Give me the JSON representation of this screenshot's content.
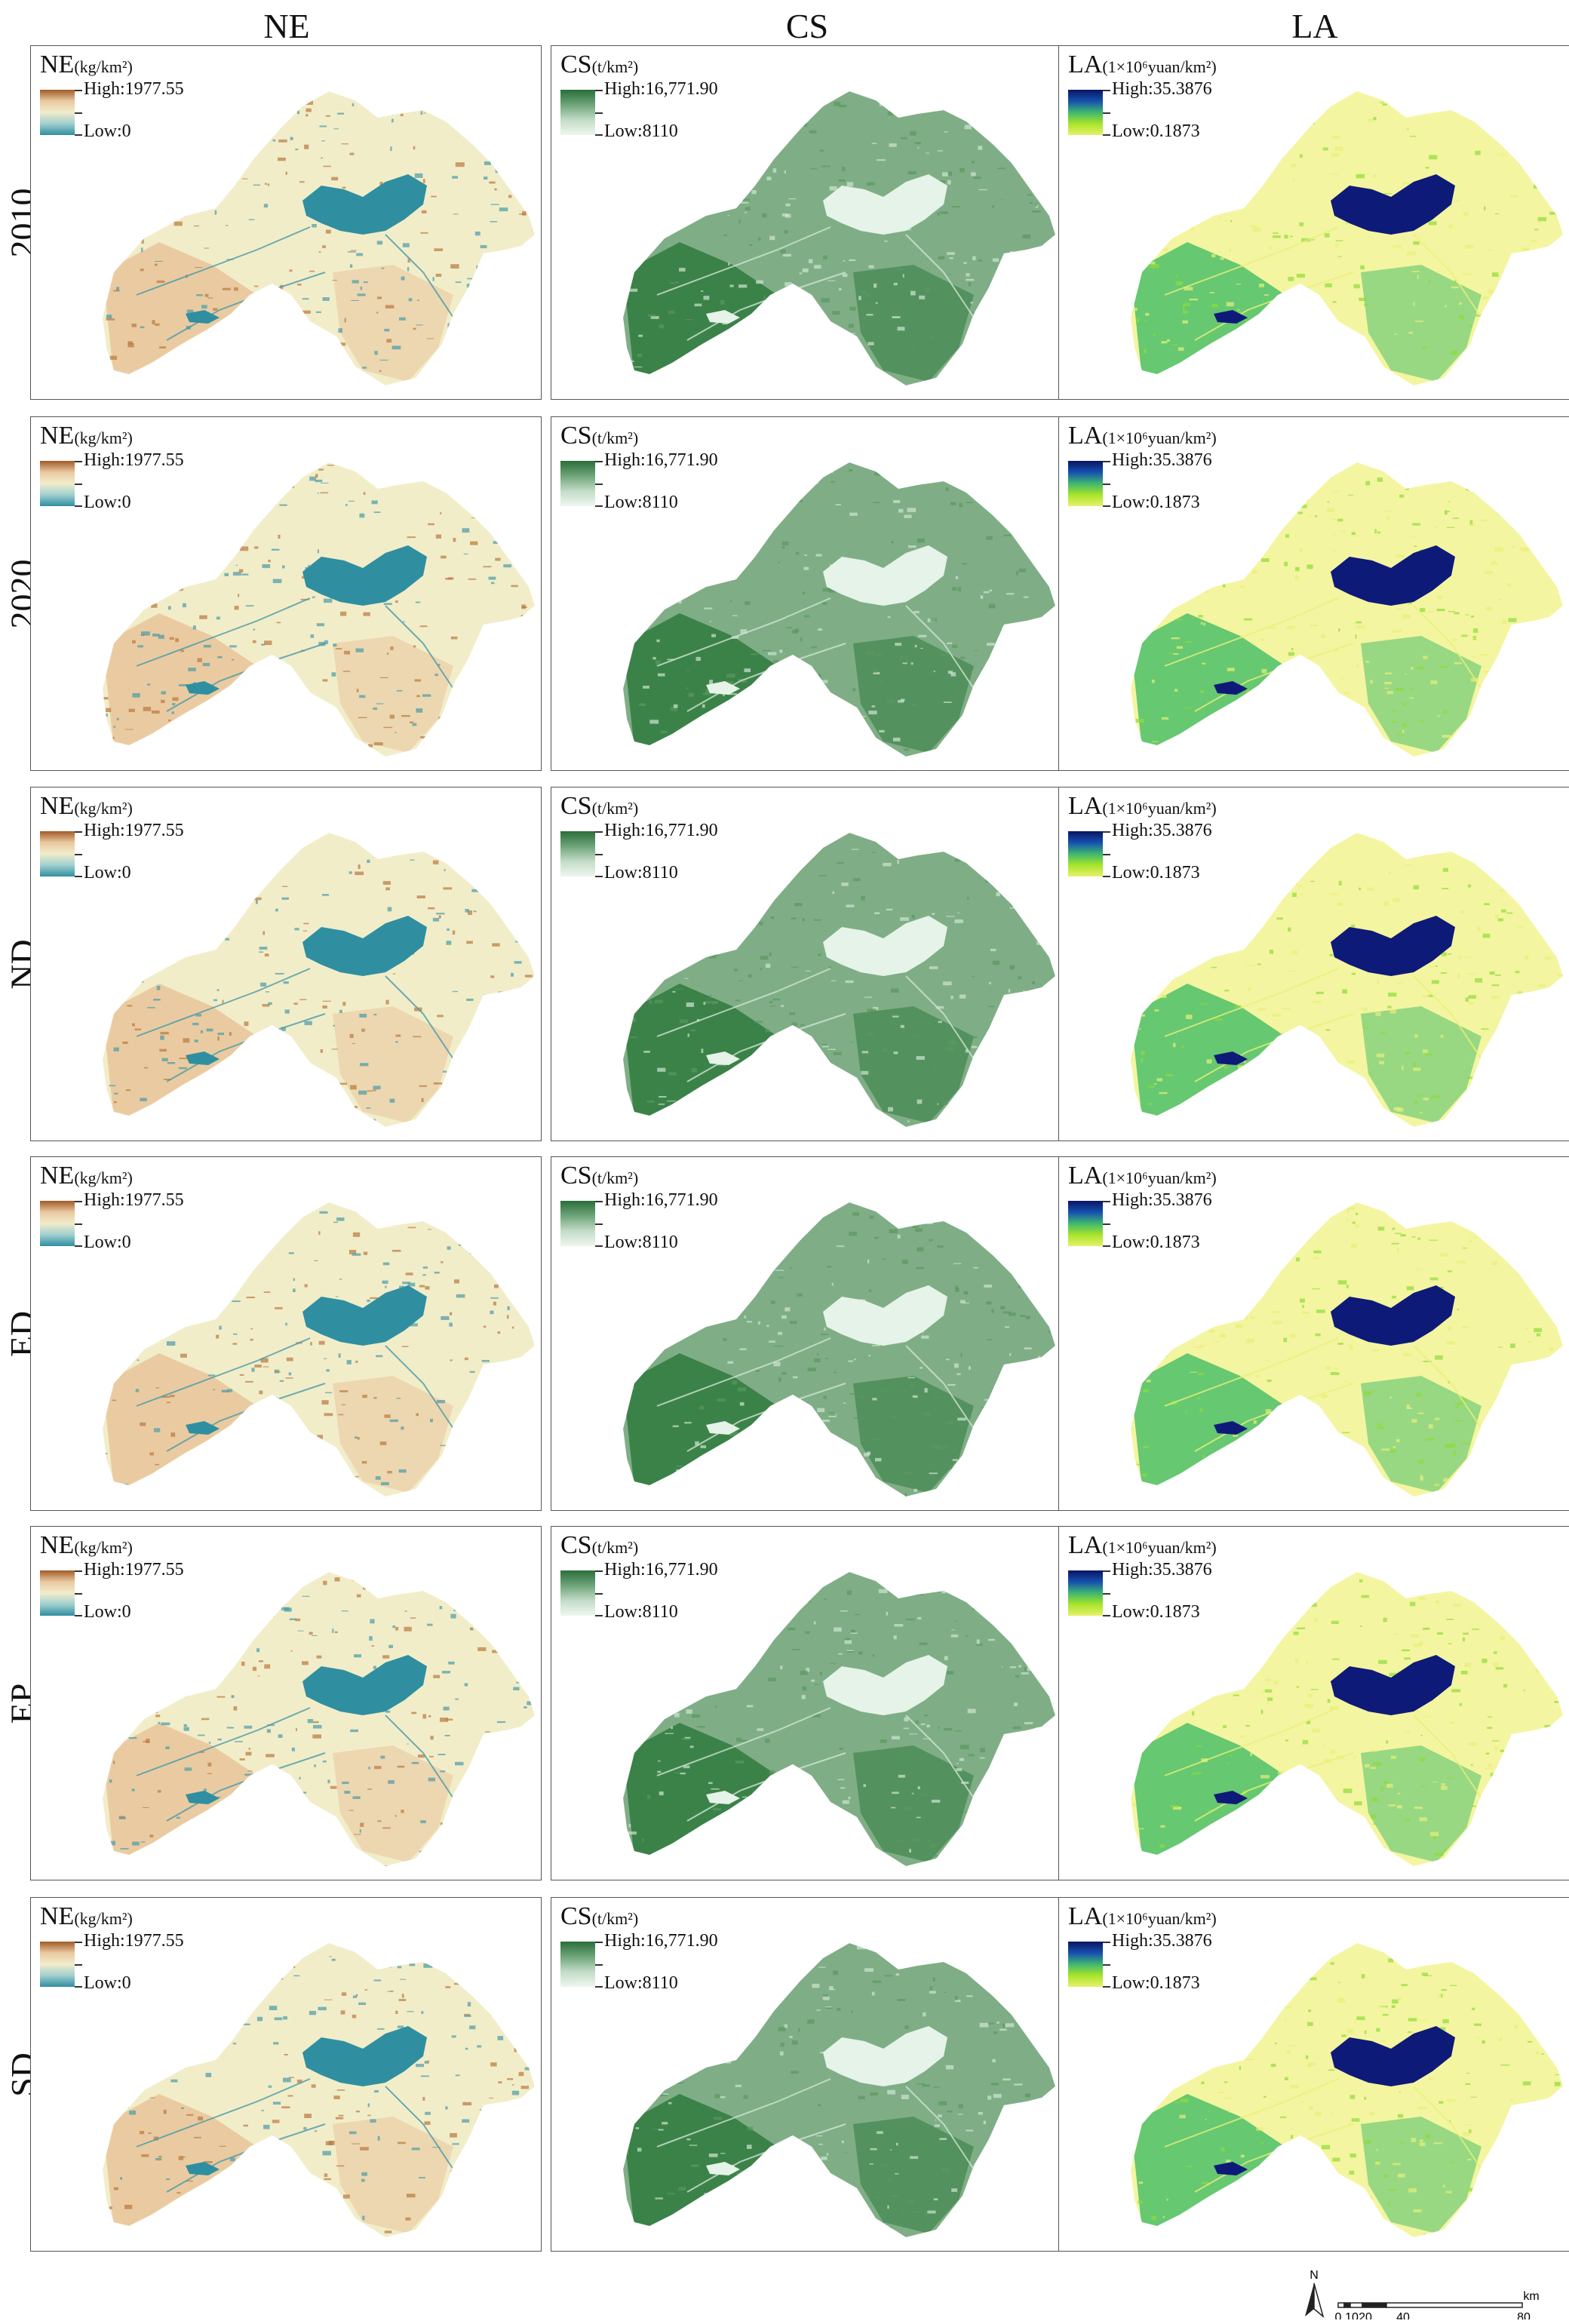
{
  "columns": [
    {
      "key": "NE",
      "header": "NE",
      "legend_prefix": "NE",
      "legend_unit": "(kg/km²)",
      "high": "High:1977.55",
      "low": "Low:0",
      "ramp": "ramp-ne",
      "colors": {
        "base": "#f2edc9",
        "water": "#2f8fa0",
        "dense": "#e9c49a",
        "accent": "#b8773f",
        "low": "#4a9aa8"
      }
    },
    {
      "key": "CS",
      "header": "CS",
      "legend_prefix": "CS",
      "legend_unit": "(t/km²)",
      "high": "High:16,771.90",
      "low": "Low:8110",
      "ramp": "ramp-cs",
      "colors": {
        "base": "#7fae86",
        "water": "#e6f3e8",
        "dense": "#2f7a3e",
        "accent": "#5b975f",
        "low": "#cfe5d2"
      }
    },
    {
      "key": "LA",
      "header": "LA",
      "legend_prefix": "LA",
      "legend_unit": "(1×10⁶yuan/km²)",
      "high": "High:35.3876",
      "low": "Low:0.1873",
      "ramp": "ramp-la",
      "colors": {
        "base": "#f4f5a0",
        "water": "#0e1a78",
        "dense": "#4cbf69",
        "accent": "#8fdc3a",
        "low": "#e8f07a"
      }
    }
  ],
  "rows": [
    "2010",
    "2020",
    "ND",
    "ED",
    "EP",
    "SD"
  ],
  "scale_bar": {
    "north": "N",
    "unit": "km",
    "ticks": [
      "0",
      "10",
      "20",
      "40",
      "80"
    ]
  }
}
